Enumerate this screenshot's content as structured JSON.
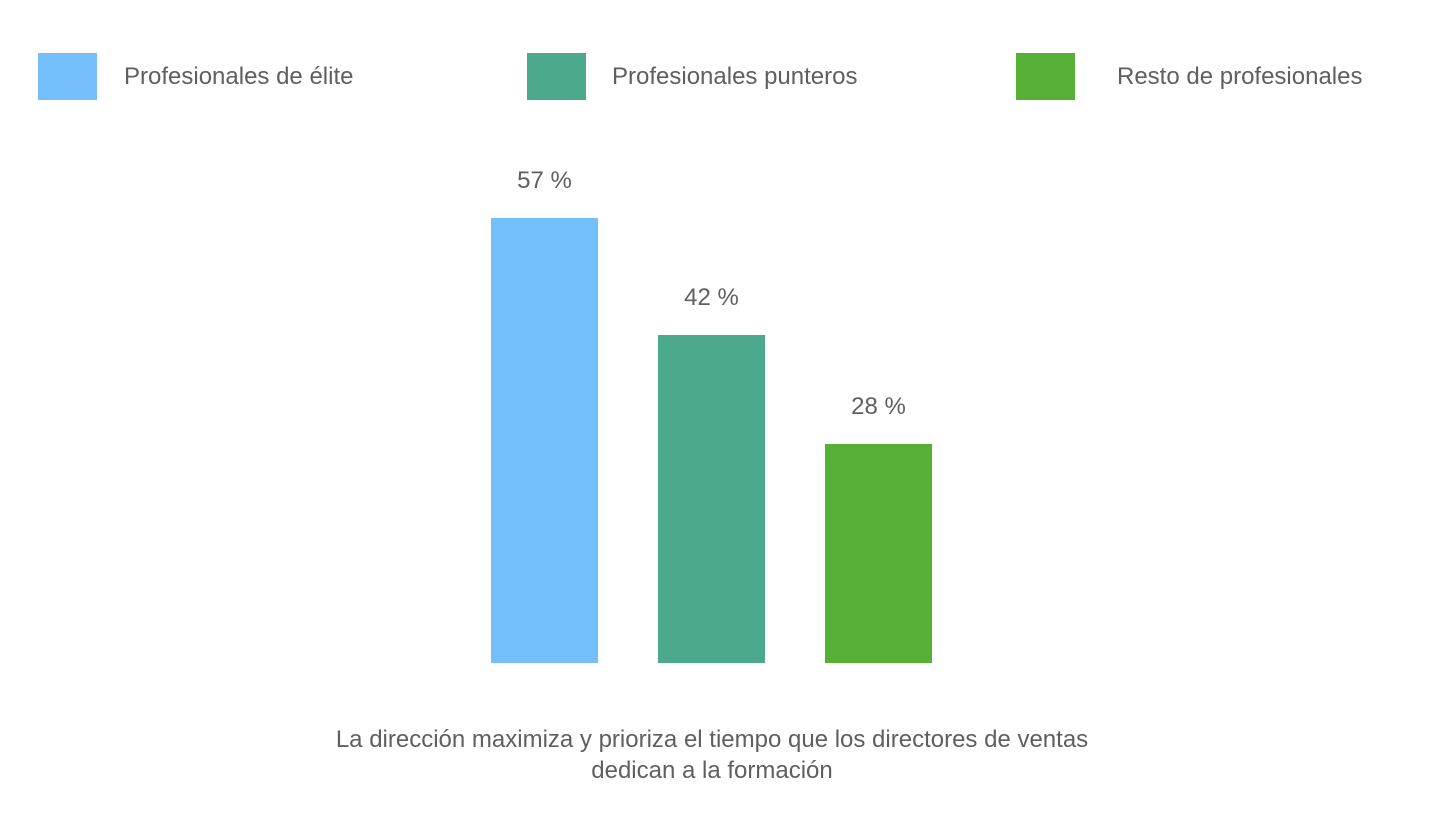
{
  "chart_data": {
    "type": "bar",
    "categories": [
      "Profesionales de élite",
      "Profesionales punteros",
      "Resto de profesionales"
    ],
    "values": [
      57,
      42,
      28
    ],
    "data_labels": [
      "57 %",
      "42 %",
      "28 %"
    ],
    "colors": [
      "#74bff9",
      "#4ca98d",
      "#55b035"
    ],
    "ylim": [
      0,
      57
    ],
    "grid": false,
    "legend": "top",
    "xlabel": "La dirección maximiza y prioriza el tiempo que los directores de ventas dedican a la formación",
    "ylabel": ""
  }
}
